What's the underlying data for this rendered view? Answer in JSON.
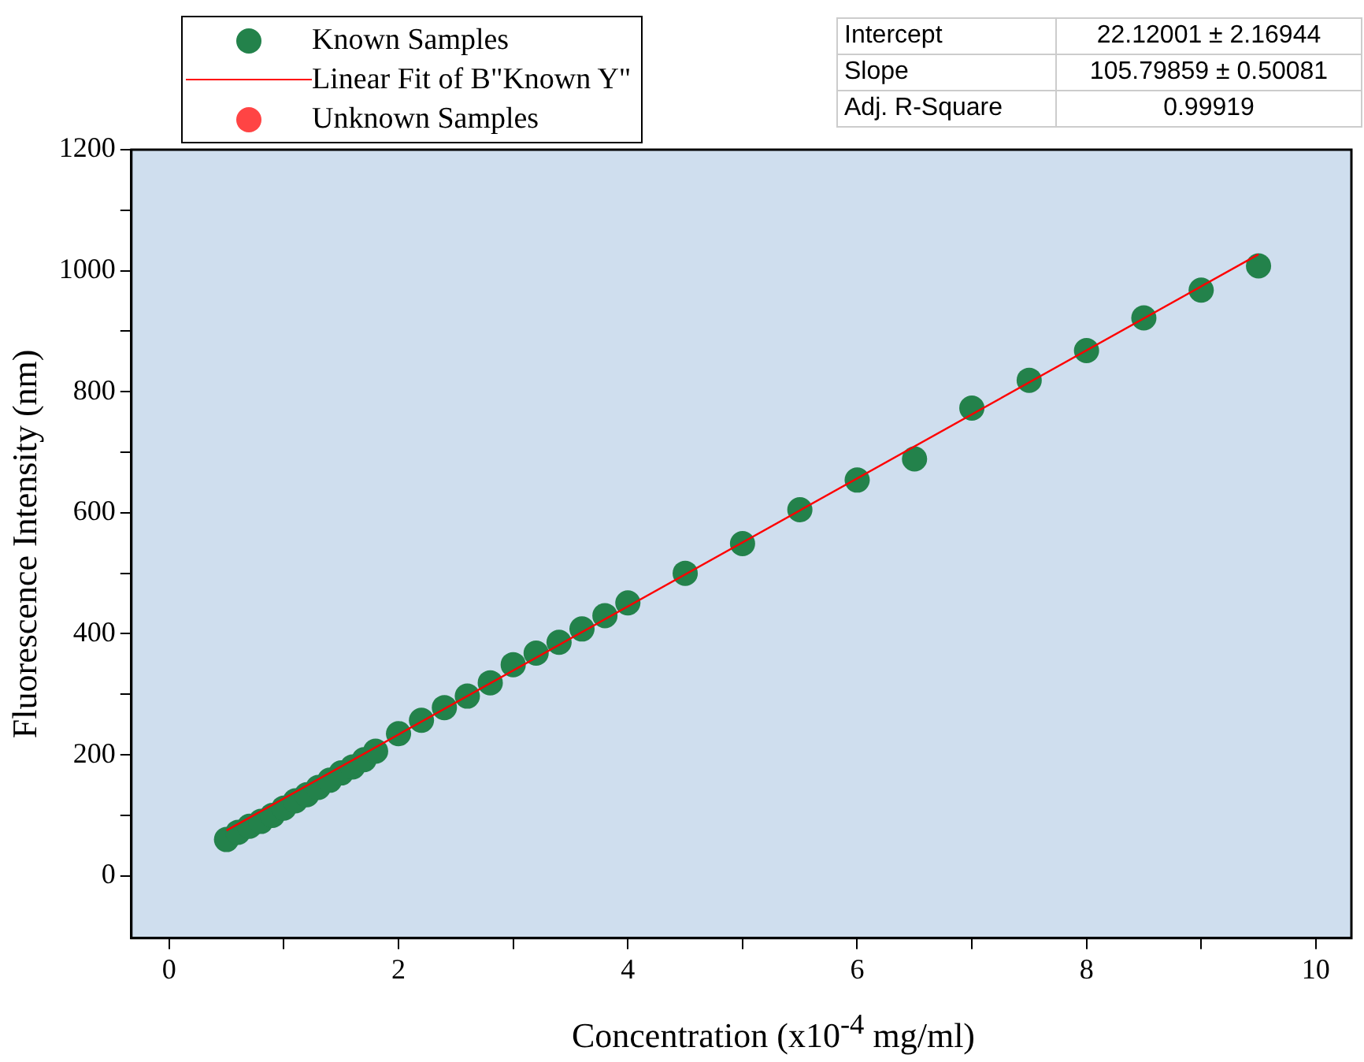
{
  "chart_data": {
    "type": "scatter",
    "xlabel": "Concentration (x10$^{-4}$ mg/ml)",
    "ylabel": "Fluorescence Intensity (nm)",
    "xlim": [
      -0.33,
      10.31
    ],
    "xticks": [
      0,
      {
        "value": 1,
        "label": null
      },
      2,
      {
        "value": 3,
        "label": null
      },
      4,
      {
        "value": 5,
        "label": null
      },
      6,
      {
        "value": 7,
        "label": null
      },
      8,
      {
        "value": 9,
        "label": null
      },
      10
    ],
    "ylim": [
      -103,
      1200
    ],
    "yticks": [
      0,
      {
        "value": 100,
        "label": null
      },
      200,
      {
        "value": 300,
        "label": null
      },
      400,
      {
        "value": 500,
        "label": null
      },
      600,
      {
        "value": 700,
        "label": null
      },
      800,
      {
        "value": 900,
        "label": null
      },
      1000,
      {
        "value": 1100,
        "label": null
      },
      1200
    ],
    "grid": false,
    "legend": "top left",
    "annotations": [
      "Intercept",
      "22.12001 ± 2.16944",
      "Slope",
      "105.79859 ± 0.50081",
      "Adj. R-Square",
      "0.99919"
    ],
    "series": [
      {
        "name": "Known Samples",
        "marker": "circle",
        "color": "#23824b",
        "x": [
          0.5,
          0.6,
          0.7,
          0.8,
          0.9,
          1.0,
          1.1,
          1.2,
          1.3,
          1.4,
          1.5,
          1.6,
          1.7,
          1.8,
          2.0,
          2.2,
          2.4,
          2.6,
          2.8,
          3.0,
          3.2,
          3.4,
          3.6,
          3.8,
          4.0,
          4.5,
          5.0,
          5.5,
          6.0,
          6.5,
          7.0,
          7.5,
          8.0,
          8.5,
          9.0,
          9.5
        ],
        "values": [
          60,
          72,
          82,
          90,
          100,
          112,
          124,
          134,
          146,
          158,
          170,
          180,
          192,
          206,
          235,
          257,
          278,
          297,
          319,
          349,
          368,
          386,
          408,
          430,
          451,
          500,
          549,
          605,
          654,
          689,
          773,
          819,
          868,
          922,
          968,
          1008
        ]
      },
      {
        "name": "Linear Fit of B\"Known Y\"",
        "type": "line",
        "marker": "none",
        "color": "#ff0000",
        "x": [
          0.5,
          9.5
        ],
        "values": [
          75,
          1027
        ]
      },
      {
        "name": "Unknown Samples",
        "type": "scatter",
        "marker": "circle",
        "color": "#ff4444"
      }
    ]
  }
}
